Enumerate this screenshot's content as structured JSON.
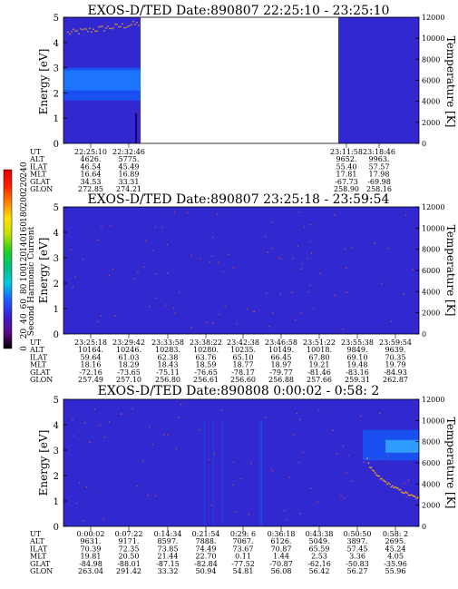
{
  "colors": {
    "background": "#2a22c8",
    "base_fill": "#3129cf",
    "band_mid": "#1a4ff0",
    "band_bright": "#1d74ff",
    "bright_band_2": "#2f9cff",
    "dot": "#d24a4a",
    "dot_bright": "#f0a020"
  },
  "colorbar": {
    "label": "Second Harmonic Current",
    "ticks": [
      "0",
      "20",
      "40",
      "60",
      "80",
      "100",
      "120",
      "140",
      "160",
      "180",
      "200",
      "220",
      "240"
    ],
    "stops": [
      "#000000",
      "#5a0a8a",
      "#3a1fd0",
      "#1e5fff",
      "#00c8e0",
      "#00c080",
      "#20d020",
      "#c0e000",
      "#ffe000",
      "#ff8000",
      "#ff2000",
      "#e00000"
    ]
  },
  "chart_data": [
    {
      "type": "heatmap",
      "title": "EXOS-D/TED   Date:890807   22:25:10 - 23:25:10",
      "ylabel": "Energy [eV]",
      "y2label": "Temperature [K]",
      "ylim": [
        0,
        5
      ],
      "y2lim": [
        0,
        12000
      ],
      "yticks": [
        "0",
        "1",
        "2",
        "3",
        "4",
        "5"
      ],
      "y2ticks": [
        "0",
        "2000",
        "4000",
        "6000",
        "8000",
        "10000",
        "12000"
      ],
      "data_gap": {
        "from_ut": "22:32:46",
        "to_ut": "23:11:58"
      },
      "energy_band_eV": [
        1.7,
        3.0
      ],
      "temperature_series": {
        "name": "Temperature",
        "x_ut": [
          "22:25:10",
          "22:28:00",
          "22:30:00",
          "22:32:00"
        ],
        "values_K": [
          10500,
          10800,
          11000,
          11300
        ]
      },
      "table": {
        "row_labels": [
          "UT",
          "ALT",
          "ILAT",
          "MLT",
          "GLAT",
          "GLON"
        ],
        "columns": [
          [
            "22:25:10",
            "4626.",
            "46.54",
            "16.64",
            "34.53",
            "272.85"
          ],
          [
            "22:32:46",
            "5775.",
            "45.49",
            "16.89",
            "33.31",
            "274.21"
          ],
          [
            "23:11:58",
            "9652.",
            "55.40",
            "17.81",
            "-67.73",
            "258.90"
          ],
          [
            "23:18:46",
            "9963.",
            "57.57",
            "17.98",
            "-69.98",
            "258.16"
          ]
        ]
      }
    },
    {
      "type": "heatmap",
      "title": "EXOS-D/TED   Date:890807   23:25:18 - 23:59:54",
      "ylabel": "Energy [eV]",
      "y2label": "Temperature [K]",
      "ylim": [
        0,
        5
      ],
      "y2lim": [
        0,
        12000
      ],
      "yticks": [
        "0",
        "1",
        "2",
        "3",
        "4",
        "5"
      ],
      "y2ticks": [
        "0",
        "2000",
        "4000",
        "6000",
        "8000",
        "10000",
        "12000"
      ],
      "table": {
        "row_labels": [
          "UT",
          "ALT",
          "ILAT",
          "MLT",
          "GLAT",
          "GLON"
        ],
        "columns": [
          [
            "23:25:18",
            "10164.",
            "59.64",
            "18.16",
            "-72.16",
            "257.49"
          ],
          [
            "23:29:42",
            "10246.",
            "61.03",
            "18.29",
            "-73.65",
            "257.10"
          ],
          [
            "23:33:58",
            "10283.",
            "62.38",
            "18.43",
            "-75.11",
            "256.80"
          ],
          [
            "23:38:22",
            "10280.",
            "63.76",
            "18.59",
            "-76.65",
            "256.61"
          ],
          [
            "23:42:38",
            "10235.",
            "65.10",
            "18.77",
            "-78.17",
            "256.60"
          ],
          [
            "23:46:58",
            "10149.",
            "66.45",
            "18.97",
            "-79.77",
            "256.88"
          ],
          [
            "23:51:22",
            "10018.",
            "67.80",
            "19.21",
            "-81.46",
            "257.66"
          ],
          [
            "23:55:38",
            "9849.",
            "69.10",
            "19.48",
            "-83.16",
            "259.31"
          ],
          [
            "23:59:54",
            "9639.",
            "70.35",
            "19.79",
            "-84.93",
            "262.87"
          ]
        ]
      }
    },
    {
      "type": "heatmap",
      "title": "EXOS-D/TED   Date:890808   0:00:02 - 0:58: 2",
      "ylabel": "Energy [eV]",
      "y2label": "Temperature [K]",
      "ylim": [
        0,
        5
      ],
      "y2lim": [
        0,
        12000
      ],
      "yticks": [
        "0",
        "1",
        "2",
        "3",
        "4",
        "5"
      ],
      "y2ticks": [
        "0",
        "2000",
        "4000",
        "6000",
        "8000",
        "10000",
        "12000"
      ],
      "energy_band_eV": [
        2.6,
        3.8
      ],
      "temperature_series": {
        "name": "Temperature",
        "x_ut": [
          "0:45:00",
          "0:48:00",
          "0:51:00",
          "0:54:00",
          "0:58:02"
        ],
        "values_K": [
          6500,
          5000,
          3900,
          3000,
          2600
        ]
      },
      "table": {
        "row_labels": [
          "UT",
          "ALT",
          "ILAT",
          "MLT",
          "GLAT",
          "GLON"
        ],
        "columns": [
          [
            "0:00:02",
            "9631.",
            "70.39",
            "19.81",
            "-84.98",
            "263.04"
          ],
          [
            "0:07:22",
            "9171.",
            "72.35",
            "20.50",
            "-88.01",
            "291.42"
          ],
          [
            "0:14:34",
            "8597.",
            "73.85",
            "21.44",
            "-87.15",
            "33.32"
          ],
          [
            "0:21:54",
            "7888.",
            "74.49",
            "22.70",
            "-82.84",
            "50.94"
          ],
          [
            "0:29: 6",
            "7067.",
            "73.67",
            "0.11",
            "-77.52",
            "54.81"
          ],
          [
            "0:36:18",
            "6126.",
            "70.87",
            "1.44",
            "-70.87",
            "56.08"
          ],
          [
            "0:43:38",
            "5049.",
            "65.59",
            "2.53",
            "-62.16",
            "56.42"
          ],
          [
            "0:50:50",
            "3897.",
            "57.45",
            "3.36",
            "-50.83",
            "56.27"
          ],
          [
            "0:58: 2",
            "2695.",
            "45.24",
            "4.05",
            "-35.96",
            "55.96"
          ]
        ]
      }
    }
  ]
}
